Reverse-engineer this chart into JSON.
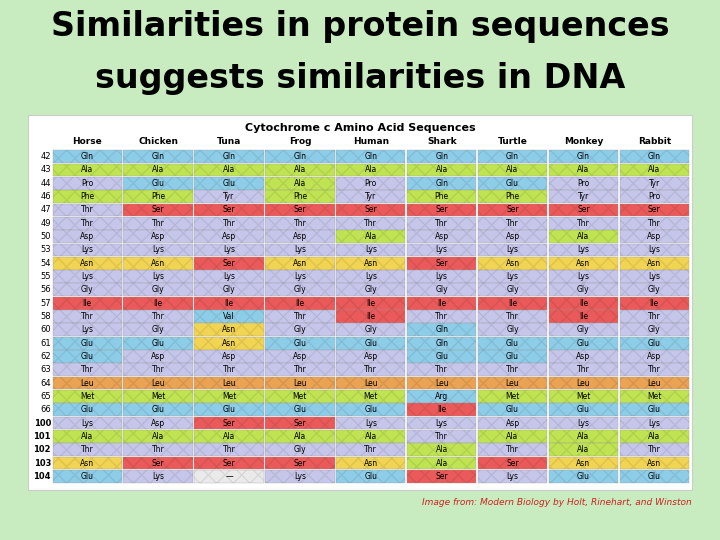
{
  "title_line1": "Similarities in protein sequences",
  "title_line2": "suggests similarities in DNA",
  "subtitle": "Cytochrome c Amino Acid Sequences",
  "caption": "Image from: Modern Biology by Holt, Rinehart, and Winston",
  "bg_color": "#c8ecc0",
  "row_numbers": [
    42,
    43,
    44,
    46,
    47,
    49,
    50,
    53,
    54,
    55,
    56,
    57,
    58,
    60,
    61,
    62,
    63,
    64,
    65,
    66,
    100,
    101,
    102,
    103,
    104
  ],
  "species": [
    "Horse",
    "Chicken",
    "Tuna",
    "Frog",
    "Human",
    "Shark",
    "Turtle",
    "Monkey",
    "Rabbit"
  ],
  "data": {
    "Horse": [
      "Gln",
      "Ala",
      "Pro",
      "Phe",
      "Thr",
      "Thr",
      "Asp",
      "Lys",
      "Asn",
      "Lys",
      "Gly",
      "Ile",
      "Thr",
      "Lys",
      "Glu",
      "Glu",
      "Thr",
      "Leu",
      "Met",
      "Glu",
      "Lys",
      "Ala",
      "Thr",
      "Asn",
      "Glu"
    ],
    "Chicken": [
      "Gln",
      "Ala",
      "Glu",
      "Phe",
      "Ser",
      "Thr",
      "Asp",
      "Lys",
      "Asn",
      "Lys",
      "Gly",
      "Ile",
      "Thr",
      "Gly",
      "Glu",
      "Asp",
      "Thr",
      "Leu",
      "Met",
      "Glu",
      "Asp",
      "Ala",
      "Thr",
      "Ser",
      "Lys"
    ],
    "Tuna": [
      "Gln",
      "Ala",
      "Glu",
      "Tyr",
      "Ser",
      "Thr",
      "Asp",
      "Lys",
      "Ser",
      "Lys",
      "Gly",
      "Ile",
      "Val",
      "Asn",
      "Asn",
      "Asp",
      "Thr",
      "Leu",
      "Met",
      "Glu",
      "Ser",
      "Ala",
      "Thr",
      "Ser",
      "--"
    ],
    "Frog": [
      "Gln",
      "Ala",
      "Ala",
      "Phe",
      "Ser",
      "Thr",
      "Asp",
      "Lys",
      "Asn",
      "Lys",
      "Gly",
      "Ile",
      "Thr",
      "Gly",
      "Glu",
      "Asp",
      "Thr",
      "Leu",
      "Met",
      "Glu",
      "Ser",
      "Ala",
      "Gly",
      "Ser",
      "Lys"
    ],
    "Human": [
      "Gln",
      "Ala",
      "Pro",
      "Tyr",
      "Ser",
      "Thr",
      "Ala",
      "Lys",
      "Asn",
      "Lys",
      "Gly",
      "Ile",
      "Ile",
      "Gly",
      "Glu",
      "Asp",
      "Thr",
      "Leu",
      "Met",
      "Glu",
      "Lys",
      "Ala",
      "Thr",
      "Asn",
      "Glu"
    ],
    "Shark": [
      "Gln",
      "Ala",
      "Gln",
      "Phe",
      "Ser",
      "Thr",
      "Asp",
      "Lys",
      "Ser",
      "Lys",
      "Gly",
      "Ile",
      "Thr",
      "Gln",
      "Gln",
      "Glu",
      "Thr",
      "Leu",
      "Arg",
      "Ile",
      "Lys",
      "Thr",
      "Ala",
      "Ala",
      "Ser"
    ],
    "Turtle": [
      "Gln",
      "Ala",
      "Glu",
      "Phe",
      "Ser",
      "Thr",
      "Asp",
      "Lys",
      "Asn",
      "Lys",
      "Gly",
      "Ile",
      "Thr",
      "Gly",
      "Glu",
      "Glu",
      "Thr",
      "Leu",
      "Met",
      "Glu",
      "Asp",
      "Ala",
      "Thr",
      "Ser",
      "Lys"
    ],
    "Monkey": [
      "Gln",
      "Ala",
      "Pro",
      "Tyr",
      "Ser",
      "Thr",
      "Ala",
      "Lys",
      "Asn",
      "Lys",
      "Gly",
      "Ile",
      "Ile",
      "Gly",
      "Glu",
      "Asp",
      "Thr",
      "Leu",
      "Met",
      "Glu",
      "Lys",
      "Ala",
      "Ala",
      "Asn",
      "Glu"
    ],
    "Rabbit": [
      "Gln",
      "Ala",
      "Tyr",
      "Pro",
      "Ser",
      "Thr",
      "Asp",
      "Lys",
      "Asn",
      "Lys",
      "Gly",
      "Ile",
      "Thr",
      "Gly",
      "Glu",
      "Asp",
      "Thr",
      "Leu",
      "Met",
      "Glu",
      "Lys",
      "Ala",
      "Thr",
      "Asn",
      "Glu"
    ]
  },
  "aa_colors": {
    "Gln": "#82c8e6",
    "Ala": "#b8e040",
    "Pro": "#c0c0e8",
    "Phe": "#b8e040",
    "Thr": "#c0c0e8",
    "Asp": "#c0c0e8",
    "Lys": "#c0c0e8",
    "Asn": "#f0d040",
    "Gly": "#c0c0e8",
    "Ile": "#e84848",
    "Val": "#82c8e6",
    "Glu": "#82c8e6",
    "Leu": "#e89840",
    "Met": "#b8e040",
    "Ser": "#e84848",
    "Tyr": "#c0c0e8",
    "Arg": "#82c8e6",
    "--": "#e8e8e8"
  }
}
